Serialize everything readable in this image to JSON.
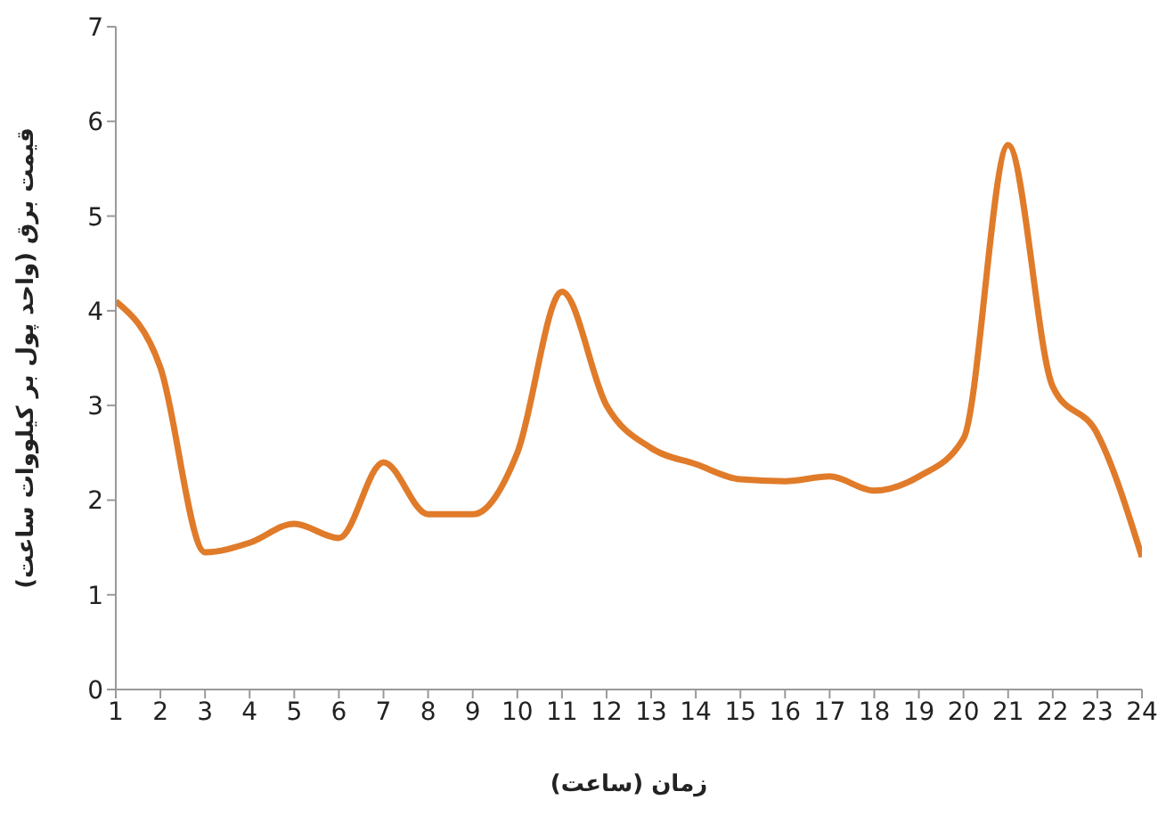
{
  "chart_data": {
    "type": "line",
    "xlabel": "زمان (ساعت)",
    "ylabel": "قیمت برق (واحد پول بر کیلووات ساعت)",
    "x": [
      1,
      2,
      3,
      4,
      5,
      6,
      7,
      8,
      9,
      10,
      11,
      12,
      13,
      14,
      15,
      16,
      17,
      18,
      19,
      20,
      21,
      22,
      23,
      24
    ],
    "series": [
      {
        "color": "#e07b2a",
        "values": [
          4.1,
          3.4,
          1.45,
          1.55,
          1.75,
          1.6,
          2.4,
          1.85,
          1.85,
          2.5,
          4.2,
          3.0,
          2.55,
          2.38,
          2.22,
          2.2,
          2.25,
          2.1,
          2.25,
          2.65,
          5.75,
          3.2,
          2.7,
          1.4
        ]
      }
    ],
    "xlim": [
      1,
      24
    ],
    "xticks": [
      1,
      2,
      3,
      4,
      5,
      6,
      7,
      8,
      9,
      10,
      11,
      12,
      13,
      14,
      15,
      16,
      17,
      18,
      19,
      20,
      21,
      22,
      23,
      24
    ],
    "ylim": [
      0,
      7
    ],
    "yticks": [
      0,
      1,
      2,
      3,
      4,
      5,
      6,
      7
    ],
    "grid": false,
    "legend": false,
    "marker": "none",
    "line_style": "solid"
  }
}
